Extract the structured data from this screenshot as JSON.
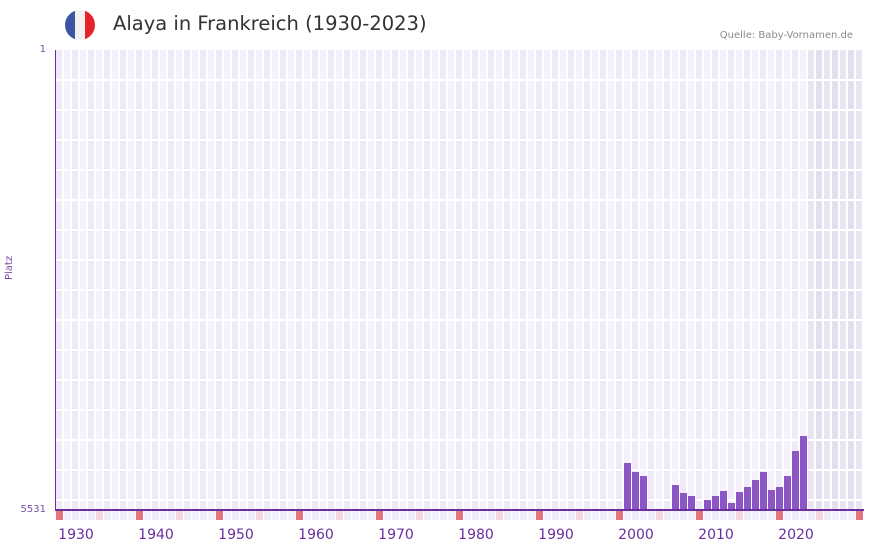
{
  "header": {
    "title": "Alaya in Frankreich (1930-2023)",
    "source": "Quelle: Baby-Vornamen.de",
    "flag": {
      "colors": [
        "#3b55a3",
        "#f1f1f1",
        "#e8222b"
      ]
    }
  },
  "colors": {
    "bar": "#8c56c6",
    "axis": "#6a2f9e",
    "grid_a": "#efeafa",
    "grid_b": "#f4f1fc",
    "forecast_a": "#e3dfee",
    "forecast_b": "#e8e4f1",
    "marker_strong": "#e5737c",
    "marker_light": "#f5d6df"
  },
  "chart_data": {
    "type": "bar",
    "title": "Alaya in Frankreich (1930-2023)",
    "xlabel": "",
    "ylabel": "Platz",
    "y_axis_inverted": true,
    "ylim": [
      1,
      5531
    ],
    "y_ticks": [
      "1",
      "5531"
    ],
    "x_range": [
      1928,
      2028
    ],
    "x_ticks": [
      "1930",
      "1940",
      "1950",
      "1960",
      "1970",
      "1980",
      "1990",
      "2000",
      "2010",
      "2020"
    ],
    "grid": true,
    "forecast_shaded_from": 2022,
    "x": [
      1999,
      2000,
      2001,
      2005,
      2006,
      2007,
      2009,
      2010,
      2011,
      2012,
      2013,
      2014,
      2015,
      2016,
      2017,
      2018,
      2019,
      2020,
      2021
    ],
    "values": [
      4966,
      5074,
      5122,
      5230,
      5327,
      5363,
      5411,
      5363,
      5303,
      5447,
      5315,
      5255,
      5170,
      5074,
      5291,
      5255,
      5122,
      4822,
      4641
    ],
    "series": [
      {
        "name": "Platz",
        "x": [
          1999,
          2000,
          2001,
          2005,
          2006,
          2007,
          2009,
          2010,
          2011,
          2012,
          2013,
          2014,
          2015,
          2016,
          2017,
          2018,
          2019,
          2020,
          2021
        ],
        "values": [
          4966,
          5074,
          5122,
          5230,
          5327,
          5363,
          5411,
          5363,
          5303,
          5447,
          5315,
          5255,
          5170,
          5074,
          5291,
          5255,
          5122,
          4822,
          4641
        ]
      }
    ]
  }
}
